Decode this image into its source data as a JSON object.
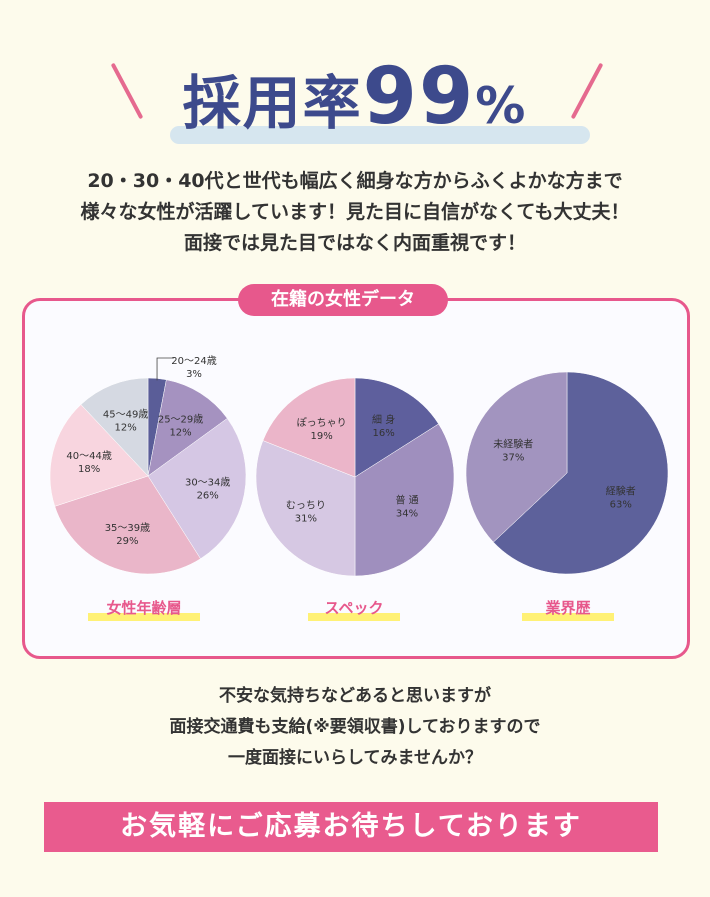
{
  "hero": {
    "title_text": "採用率",
    "title_number": "99",
    "title_suffix": "%"
  },
  "intro": {
    "lines": [
      "20・30・40代と世代も幅広く細身な方からふくよかな方まで",
      "様々な女性が活躍しています！見た目に自信がなくても大丈夫！",
      "面接では見た目ではなく内面重視です！"
    ]
  },
  "panel": {
    "title": "在籍の女性データ"
  },
  "chart_data": [
    {
      "type": "pie",
      "title": "女性年齢層",
      "categories": [
        "20〜24歳",
        "25〜29歳",
        "30〜34歳",
        "35〜39歳",
        "40〜44歳",
        "45〜49歳"
      ],
      "values": [
        3,
        12,
        26,
        29,
        18,
        12
      ],
      "colors": [
        "#5a5d98",
        "#a592c0",
        "#d5c7e4",
        "#eab6c9",
        "#f8d5df",
        "#d5d9e2"
      ]
    },
    {
      "type": "pie",
      "title": "スペック",
      "categories": [
        "細 身",
        "普 通",
        "むっちり",
        "ぽっちゃり"
      ],
      "values": [
        16,
        34,
        31,
        19
      ],
      "colors": [
        "#5e5f9d",
        "#9f8fbe",
        "#d6c8e3",
        "#ebb5c9"
      ]
    },
    {
      "type": "pie",
      "title": "業界歴",
      "categories": [
        "経験者",
        "未経験者"
      ],
      "values": [
        63,
        37
      ],
      "colors": [
        "#5d619b",
        "#a294bf"
      ]
    }
  ],
  "outro": {
    "lines": [
      "不安な気持ちなどあると思いますが",
      "面接交通費も支給(※要領収書)しておりますので",
      "一度面接にいらしてみませんか？"
    ]
  },
  "cta": {
    "label": "お気軽にご応募お待ちしております"
  }
}
